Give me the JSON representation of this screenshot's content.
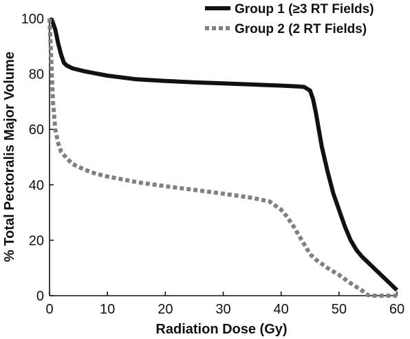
{
  "chart_data": {
    "type": "line",
    "xlabel": "Radiation Dose (Gy)",
    "ylabel": "%  Total Pectoralis Major Volume",
    "xlim": [
      0,
      60
    ],
    "ylim": [
      0,
      100
    ],
    "xticks": [
      "0",
      "10",
      "20",
      "30",
      "40",
      "50",
      "60"
    ],
    "yticks": [
      "0",
      "20",
      "40",
      "60",
      "80",
      "100"
    ],
    "grid": false,
    "legend_position": "top-right",
    "series": [
      {
        "name": "Group 1 (≥3 RT Fields)",
        "color": "#111111",
        "style": "solid",
        "x": [
          0,
          0.5,
          1,
          1.5,
          2,
          2.5,
          3,
          4,
          6,
          8,
          10,
          15,
          20,
          25,
          30,
          35,
          40,
          43,
          44,
          45,
          45.5,
          46,
          47,
          48,
          49,
          50,
          51,
          52,
          53,
          54,
          55,
          56,
          57,
          58,
          59,
          60
        ],
        "y": [
          100,
          99,
          96,
          91,
          87,
          84,
          83,
          82,
          81,
          80.2,
          79.4,
          78.1,
          77.5,
          77,
          76.6,
          76.2,
          75.8,
          75.5,
          75.3,
          74,
          71,
          66,
          54,
          45,
          37,
          31,
          25,
          20,
          16.5,
          14,
          12,
          10,
          8,
          6,
          4,
          2
        ]
      },
      {
        "name": "Group 2 (2 RT Fields)",
        "color": "#808080",
        "style": "dashed",
        "x": [
          0,
          0.3,
          0.6,
          1,
          1.5,
          2,
          3,
          4,
          6,
          8,
          10,
          15,
          20,
          25,
          30,
          35,
          38,
          40,
          41,
          42,
          43,
          44,
          45,
          46,
          48,
          50,
          52,
          54,
          55,
          56,
          58,
          60
        ],
        "y": [
          100,
          85,
          70,
          60,
          55,
          52,
          49.5,
          47.5,
          45.5,
          44,
          43,
          41,
          39.5,
          38.2,
          36.8,
          35.3,
          34,
          31,
          28.5,
          25.5,
          22,
          18.5,
          15,
          13,
          10,
          7.5,
          4.5,
          1.8,
          0.2,
          0,
          0,
          0
        ]
      }
    ]
  }
}
